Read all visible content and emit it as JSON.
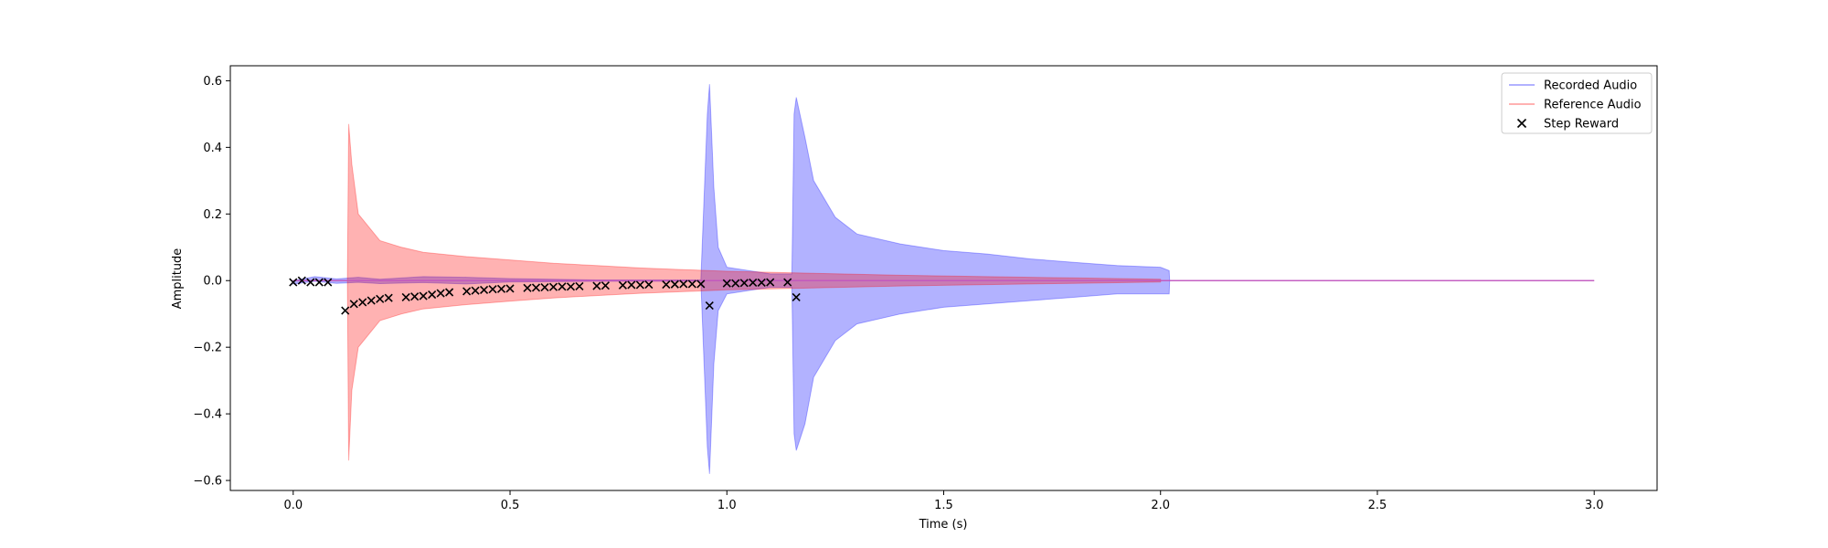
{
  "chart_data": {
    "type": "line",
    "title": "",
    "xlabel": "Time (s)",
    "ylabel": "Amplitude",
    "xlim": [
      -0.145,
      3.145
    ],
    "ylim": [
      -0.63,
      0.645
    ],
    "x_ticks": [
      0.0,
      0.5,
      1.0,
      1.5,
      2.0,
      2.5,
      3.0
    ],
    "x_tick_labels": [
      "0.0",
      "0.5",
      "1.0",
      "1.5",
      "2.0",
      "2.5",
      "3.0"
    ],
    "y_ticks": [
      -0.6,
      -0.4,
      -0.2,
      0.0,
      0.2,
      0.4,
      0.6
    ],
    "y_tick_labels": [
      "−0.6",
      "−0.4",
      "−0.2",
      "0.0",
      "0.2",
      "0.4",
      "0.6"
    ],
    "grid": false,
    "legend_position": "top-right",
    "series": [
      {
        "name": "Recorded Audio",
        "kind": "waveform-envelope",
        "color": "#0000ff",
        "alpha": 0.3,
        "envelope_points": [
          {
            "t": 0.0,
            "upper": 0.0,
            "lower": -0.01
          },
          {
            "t": 0.05,
            "upper": 0.012,
            "lower": -0.002
          },
          {
            "t": 0.1,
            "upper": 0.005,
            "lower": -0.008
          },
          {
            "t": 0.15,
            "upper": 0.01,
            "lower": -0.005
          },
          {
            "t": 0.2,
            "upper": 0.004,
            "lower": -0.009
          },
          {
            "t": 0.3,
            "upper": 0.012,
            "lower": -0.006
          },
          {
            "t": 0.4,
            "upper": 0.01,
            "lower": -0.01
          },
          {
            "t": 0.5,
            "upper": 0.006,
            "lower": -0.004
          },
          {
            "t": 0.7,
            "upper": 0.002,
            "lower": -0.002
          },
          {
            "t": 0.94,
            "upper": 0.002,
            "lower": -0.002
          },
          {
            "t": 0.955,
            "upper": 0.5,
            "lower": -0.5
          },
          {
            "t": 0.96,
            "upper": 0.59,
            "lower": -0.58
          },
          {
            "t": 0.97,
            "upper": 0.28,
            "lower": -0.25
          },
          {
            "t": 0.98,
            "upper": 0.1,
            "lower": -0.09
          },
          {
            "t": 1.0,
            "upper": 0.04,
            "lower": -0.04
          },
          {
            "t": 1.1,
            "upper": 0.02,
            "lower": -0.02
          },
          {
            "t": 1.15,
            "upper": 0.02,
            "lower": -0.02
          },
          {
            "t": 1.155,
            "upper": 0.5,
            "lower": -0.46
          },
          {
            "t": 1.16,
            "upper": 0.55,
            "lower": -0.51
          },
          {
            "t": 1.18,
            "upper": 0.43,
            "lower": -0.43
          },
          {
            "t": 1.2,
            "upper": 0.3,
            "lower": -0.29
          },
          {
            "t": 1.25,
            "upper": 0.19,
            "lower": -0.18
          },
          {
            "t": 1.3,
            "upper": 0.14,
            "lower": -0.13
          },
          {
            "t": 1.4,
            "upper": 0.11,
            "lower": -0.1
          },
          {
            "t": 1.5,
            "upper": 0.09,
            "lower": -0.08
          },
          {
            "t": 1.6,
            "upper": 0.08,
            "lower": -0.07
          },
          {
            "t": 1.7,
            "upper": 0.065,
            "lower": -0.06
          },
          {
            "t": 1.8,
            "upper": 0.055,
            "lower": -0.05
          },
          {
            "t": 1.9,
            "upper": 0.045,
            "lower": -0.04
          },
          {
            "t": 2.0,
            "upper": 0.04,
            "lower": -0.04
          },
          {
            "t": 2.02,
            "upper": 0.03,
            "lower": -0.04
          },
          {
            "t": 2.021,
            "upper": 0.0,
            "lower": 0.0
          },
          {
            "t": 3.0,
            "upper": 0.0,
            "lower": 0.0
          }
        ]
      },
      {
        "name": "Reference Audio",
        "kind": "waveform-envelope",
        "color": "#ff0000",
        "alpha": 0.3,
        "envelope_points": [
          {
            "t": 0.0,
            "upper": 0.0,
            "lower": 0.0
          },
          {
            "t": 0.125,
            "upper": 0.0,
            "lower": 0.0
          },
          {
            "t": 0.128,
            "upper": 0.47,
            "lower": -0.54
          },
          {
            "t": 0.135,
            "upper": 0.35,
            "lower": -0.33
          },
          {
            "t": 0.15,
            "upper": 0.2,
            "lower": -0.2
          },
          {
            "t": 0.2,
            "upper": 0.12,
            "lower": -0.12
          },
          {
            "t": 0.25,
            "upper": 0.1,
            "lower": -0.1
          },
          {
            "t": 0.3,
            "upper": 0.085,
            "lower": -0.085
          },
          {
            "t": 0.4,
            "upper": 0.072,
            "lower": -0.072
          },
          {
            "t": 0.5,
            "upper": 0.062,
            "lower": -0.062
          },
          {
            "t": 0.6,
            "upper": 0.052,
            "lower": -0.052
          },
          {
            "t": 0.7,
            "upper": 0.045,
            "lower": -0.045
          },
          {
            "t": 0.8,
            "upper": 0.038,
            "lower": -0.038
          },
          {
            "t": 0.9,
            "upper": 0.033,
            "lower": -0.033
          },
          {
            "t": 1.0,
            "upper": 0.028,
            "lower": -0.028
          },
          {
            "t": 1.2,
            "upper": 0.022,
            "lower": -0.022
          },
          {
            "t": 1.4,
            "upper": 0.016,
            "lower": -0.016
          },
          {
            "t": 1.6,
            "upper": 0.012,
            "lower": -0.012
          },
          {
            "t": 1.8,
            "upper": 0.008,
            "lower": -0.008
          },
          {
            "t": 2.0,
            "upper": 0.004,
            "lower": -0.004
          },
          {
            "t": 2.001,
            "upper": 0.0,
            "lower": 0.0
          },
          {
            "t": 3.0,
            "upper": 0.0,
            "lower": 0.0
          }
        ]
      },
      {
        "name": "Step Reward",
        "kind": "scatter",
        "marker": "x",
        "color": "#000000",
        "points": [
          {
            "x": 0.0,
            "y": -0.005
          },
          {
            "x": 0.02,
            "y": 0.0
          },
          {
            "x": 0.04,
            "y": -0.005
          },
          {
            "x": 0.06,
            "y": -0.005
          },
          {
            "x": 0.08,
            "y": -0.005
          },
          {
            "x": 0.12,
            "y": -0.09
          },
          {
            "x": 0.14,
            "y": -0.07
          },
          {
            "x": 0.16,
            "y": -0.065
          },
          {
            "x": 0.18,
            "y": -0.06
          },
          {
            "x": 0.2,
            "y": -0.055
          },
          {
            "x": 0.22,
            "y": -0.052
          },
          {
            "x": 0.26,
            "y": -0.05
          },
          {
            "x": 0.28,
            "y": -0.048
          },
          {
            "x": 0.3,
            "y": -0.046
          },
          {
            "x": 0.32,
            "y": -0.042
          },
          {
            "x": 0.34,
            "y": -0.038
          },
          {
            "x": 0.36,
            "y": -0.035
          },
          {
            "x": 0.4,
            "y": -0.032
          },
          {
            "x": 0.42,
            "y": -0.03
          },
          {
            "x": 0.44,
            "y": -0.028
          },
          {
            "x": 0.46,
            "y": -0.026
          },
          {
            "x": 0.48,
            "y": -0.025
          },
          {
            "x": 0.5,
            "y": -0.024
          },
          {
            "x": 0.54,
            "y": -0.022
          },
          {
            "x": 0.56,
            "y": -0.021
          },
          {
            "x": 0.58,
            "y": -0.02
          },
          {
            "x": 0.6,
            "y": -0.019
          },
          {
            "x": 0.62,
            "y": -0.018
          },
          {
            "x": 0.64,
            "y": -0.018
          },
          {
            "x": 0.66,
            "y": -0.017
          },
          {
            "x": 0.7,
            "y": -0.016
          },
          {
            "x": 0.72,
            "y": -0.015
          },
          {
            "x": 0.76,
            "y": -0.014
          },
          {
            "x": 0.78,
            "y": -0.013
          },
          {
            "x": 0.8,
            "y": -0.013
          },
          {
            "x": 0.82,
            "y": -0.012
          },
          {
            "x": 0.86,
            "y": -0.012
          },
          {
            "x": 0.88,
            "y": -0.011
          },
          {
            "x": 0.9,
            "y": -0.01
          },
          {
            "x": 0.92,
            "y": -0.01
          },
          {
            "x": 0.94,
            "y": -0.01
          },
          {
            "x": 0.96,
            "y": -0.075
          },
          {
            "x": 1.0,
            "y": -0.008
          },
          {
            "x": 1.02,
            "y": -0.008
          },
          {
            "x": 1.04,
            "y": -0.007
          },
          {
            "x": 1.06,
            "y": -0.006
          },
          {
            "x": 1.08,
            "y": -0.006
          },
          {
            "x": 1.1,
            "y": -0.005
          },
          {
            "x": 1.14,
            "y": -0.005
          },
          {
            "x": 1.16,
            "y": -0.05
          }
        ]
      }
    ]
  }
}
